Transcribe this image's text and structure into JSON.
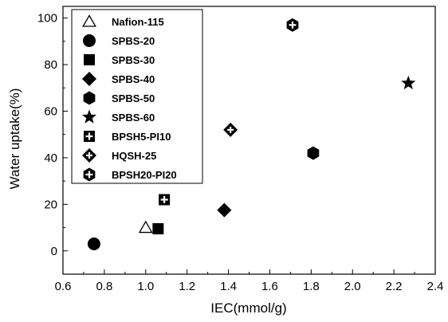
{
  "chart_data": {
    "type": "scatter",
    "title": "",
    "xlabel": "IEC(mmol/g)",
    "ylabel": "Water uptake(%)",
    "xlim": [
      0.6,
      2.4
    ],
    "ylim": [
      -10,
      105
    ],
    "xticks": [
      0.6,
      0.8,
      1.0,
      1.2,
      1.4,
      1.6,
      1.8,
      2.0,
      2.2,
      2.4
    ],
    "xtick_labels": [
      "0.6",
      "0.8",
      "1.0",
      "1.2",
      "1.4",
      "1.6",
      "1.8",
      "2.0",
      "2.2",
      "2.4"
    ],
    "yticks": [
      0,
      20,
      40,
      60,
      80,
      100
    ],
    "ytick_labels": [
      "0",
      "20",
      "40",
      "60",
      "80",
      "100"
    ],
    "grid": false,
    "legend_position": "top-left",
    "series": [
      {
        "name": "Nafion-115",
        "marker": "triangle-open",
        "points": [
          {
            "x": 1.0,
            "y": 10
          }
        ]
      },
      {
        "name": "SPBS-20",
        "marker": "circle",
        "points": [
          {
            "x": 0.75,
            "y": 3
          }
        ]
      },
      {
        "name": "SPBS-30",
        "marker": "square",
        "points": [
          {
            "x": 1.06,
            "y": 9.5
          }
        ]
      },
      {
        "name": "SPBS-40",
        "marker": "diamond",
        "points": [
          {
            "x": 1.38,
            "y": 17.5
          }
        ]
      },
      {
        "name": "SPBS-50",
        "marker": "hexagon",
        "points": [
          {
            "x": 1.81,
            "y": 42
          }
        ]
      },
      {
        "name": "SPBS-60",
        "marker": "star",
        "points": [
          {
            "x": 2.27,
            "y": 72
          }
        ]
      },
      {
        "name": "BPSH5-PI10",
        "marker": "square-plus",
        "points": [
          {
            "x": 1.09,
            "y": 22
          }
        ]
      },
      {
        "name": "HQSH-25",
        "marker": "diamond-plus",
        "points": [
          {
            "x": 1.41,
            "y": 52
          }
        ]
      },
      {
        "name": "BPSH20-PI20",
        "marker": "hexagon-plus",
        "points": [
          {
            "x": 1.71,
            "y": 97
          }
        ]
      }
    ]
  }
}
